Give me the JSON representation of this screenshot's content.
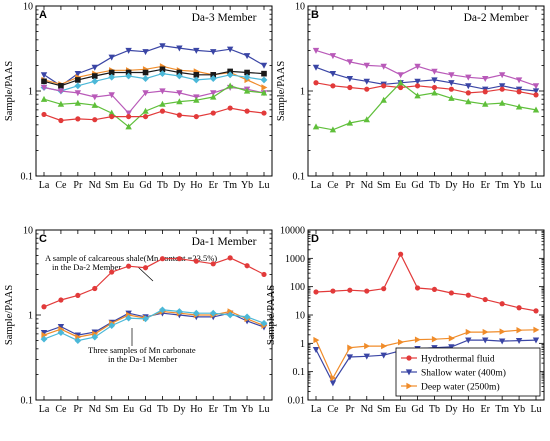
{
  "figure": {
    "elements": [
      "La",
      "Ce",
      "Pr",
      "Nd",
      "Sm",
      "Eu",
      "Gd",
      "Tb",
      "Dy",
      "Ho",
      "Er",
      "Tm",
      "Yb",
      "Lu"
    ],
    "ylabel": "Sample/PAAS"
  },
  "chart_data": [
    {
      "id": "A",
      "letter": "A",
      "type": "line",
      "title": "Da-3 Member",
      "ylabel": "Sample/PAAS",
      "yscale": "log",
      "ylim": [
        0.1,
        10
      ],
      "yticks": [
        "0.1",
        "1",
        "10"
      ],
      "categories": [
        "La",
        "Ce",
        "Pr",
        "Nd",
        "Sm",
        "Eu",
        "Gd",
        "Tb",
        "Dy",
        "Ho",
        "Er",
        "Tm",
        "Yb",
        "Lu"
      ],
      "series": [
        {
          "color": "#3a45a5",
          "marker": "triangle-down",
          "values": [
            1.55,
            1.15,
            1.6,
            1.9,
            2.5,
            3.0,
            2.9,
            3.4,
            3.2,
            3.0,
            2.9,
            3.1,
            2.6,
            2.0
          ]
        },
        {
          "color": "#f08c2a",
          "marker": "triangle-right",
          "values": [
            1.35,
            1.2,
            1.45,
            1.6,
            1.75,
            1.75,
            1.8,
            1.95,
            1.75,
            1.7,
            1.55,
            1.65,
            1.35,
            1.1
          ]
        },
        {
          "color": "#1a1a1a",
          "marker": "square",
          "values": [
            1.3,
            1.15,
            1.35,
            1.5,
            1.65,
            1.65,
            1.65,
            1.8,
            1.65,
            1.55,
            1.55,
            1.7,
            1.65,
            1.6
          ]
        },
        {
          "color": "#4bb8d8",
          "marker": "diamond",
          "values": [
            1.1,
            1.0,
            1.15,
            1.3,
            1.45,
            1.5,
            1.4,
            1.6,
            1.5,
            1.35,
            1.4,
            1.55,
            1.45,
            1.35
          ]
        },
        {
          "color": "#b95ab9",
          "marker": "triangle-down",
          "values": [
            1.1,
            1.0,
            0.95,
            0.85,
            0.9,
            0.55,
            0.95,
            1.0,
            0.95,
            0.85,
            0.95,
            1.1,
            1.05,
            0.95
          ]
        },
        {
          "color": "#5fbf3a",
          "marker": "triangle-up",
          "values": [
            0.8,
            0.7,
            0.72,
            0.68,
            0.55,
            0.38,
            0.58,
            0.7,
            0.75,
            0.78,
            0.85,
            1.15,
            1.0,
            0.95
          ]
        },
        {
          "color": "#e23a3a",
          "marker": "circle",
          "values": [
            0.53,
            0.45,
            0.47,
            0.46,
            0.5,
            0.5,
            0.5,
            0.58,
            0.52,
            0.5,
            0.55,
            0.63,
            0.58,
            0.55
          ]
        }
      ]
    },
    {
      "id": "B",
      "letter": "B",
      "type": "line",
      "title": "Da-2 Member",
      "ylabel": "Sample/PAAS",
      "yscale": "log",
      "ylim": [
        0.1,
        10
      ],
      "yticks": [
        "0.1",
        "1",
        "10"
      ],
      "categories": [
        "La",
        "Ce",
        "Pr",
        "Nd",
        "Sm",
        "Eu",
        "Gd",
        "Tb",
        "Dy",
        "Ho",
        "Er",
        "Tm",
        "Yb",
        "Lu"
      ],
      "series": [
        {
          "color": "#b95ab9",
          "marker": "triangle-down",
          "values": [
            3.0,
            2.6,
            2.2,
            2.0,
            1.95,
            1.55,
            1.95,
            1.7,
            1.55,
            1.45,
            1.4,
            1.55,
            1.35,
            1.15
          ]
        },
        {
          "color": "#3a45a5",
          "marker": "triangle-down",
          "values": [
            1.9,
            1.6,
            1.4,
            1.3,
            1.2,
            1.25,
            1.3,
            1.35,
            1.25,
            1.15,
            1.05,
            1.15,
            1.05,
            1.0
          ]
        },
        {
          "color": "#e23a3a",
          "marker": "circle",
          "values": [
            1.25,
            1.15,
            1.1,
            1.05,
            1.15,
            1.1,
            1.15,
            1.1,
            1.05,
            0.95,
            0.98,
            1.05,
            0.98,
            0.9
          ]
        },
        {
          "color": "#5fbf3a",
          "marker": "triangle-up",
          "values": [
            0.38,
            0.35,
            0.42,
            0.46,
            0.78,
            1.25,
            0.88,
            0.95,
            0.82,
            0.75,
            0.7,
            0.72,
            0.65,
            0.6
          ]
        }
      ]
    },
    {
      "id": "C",
      "letter": "C",
      "type": "line",
      "title": "Da-1 Member",
      "ylabel": "Sample/PAAS",
      "yscale": "log",
      "ylim": [
        0.1,
        10
      ],
      "yticks": [
        "0.1",
        "1",
        "10"
      ],
      "categories": [
        "La",
        "Ce",
        "Pr",
        "Nd",
        "Sm",
        "Eu",
        "Gd",
        "Tb",
        "Dy",
        "Ho",
        "Er",
        "Tm",
        "Yb",
        "Lu"
      ],
      "annotations": [
        {
          "line1": "A sample of calcareous shale(Mn content =23.5%)",
          "line2": "in the Da-2 Member"
        },
        {
          "line1": "Three samples of Mn carbonate",
          "line2": "in the Da-1 Member"
        }
      ],
      "series": [
        {
          "color": "#e23a3a",
          "marker": "circle",
          "values": [
            1.25,
            1.5,
            1.7,
            2.05,
            3.2,
            3.75,
            3.6,
            4.6,
            4.6,
            4.3,
            4.0,
            4.7,
            3.8,
            3.0
          ]
        },
        {
          "color": "#3a45a5",
          "marker": "triangle-down",
          "values": [
            0.62,
            0.73,
            0.58,
            0.63,
            0.82,
            1.05,
            0.95,
            1.05,
            1.0,
            0.95,
            0.95,
            1.05,
            0.85,
            0.72
          ]
        },
        {
          "color": "#f08c2a",
          "marker": "triangle-right",
          "values": [
            0.58,
            0.68,
            0.55,
            0.6,
            0.8,
            1.0,
            0.92,
            1.1,
            1.05,
            1.0,
            1.0,
            1.1,
            0.9,
            0.75
          ]
        },
        {
          "color": "#4bb8d8",
          "marker": "diamond",
          "values": [
            0.52,
            0.62,
            0.5,
            0.55,
            0.75,
            0.92,
            0.9,
            1.15,
            1.1,
            1.05,
            1.05,
            1.0,
            0.95,
            0.8
          ]
        }
      ]
    },
    {
      "id": "D",
      "letter": "D",
      "type": "line",
      "title": "",
      "ylabel": "Sample/PAAS",
      "yscale": "log",
      "ylim": [
        0.01,
        10000
      ],
      "yticks": [
        "0.01",
        "0.1",
        "1",
        "10",
        "100",
        "1000",
        "10000"
      ],
      "categories": [
        "La",
        "Ce",
        "Pr",
        "Nd",
        "Sm",
        "Eu",
        "Gd",
        "Tb",
        "Dy",
        "Ho",
        "Er",
        "Tm",
        "Yb",
        "Lu"
      ],
      "legend": {
        "placement": "bottom-right"
      },
      "series": [
        {
          "name": "Hydrothermal fluid",
          "color": "#e23a3a",
          "marker": "circle",
          "values": [
            65,
            70,
            75,
            70,
            85,
            1400,
            90,
            80,
            60,
            50,
            35,
            25,
            18,
            14
          ]
        },
        {
          "name": "Shallow water (400m)",
          "color": "#3a45a5",
          "marker": "triangle-down",
          "values": [
            0.6,
            0.04,
            0.33,
            0.35,
            0.38,
            0.55,
            0.65,
            0.7,
            0.75,
            1.3,
            1.3,
            1.2,
            1.25,
            1.3
          ]
        },
        {
          "name": "Deep water (2500m)",
          "color": "#f08c2a",
          "marker": "triangle-right",
          "values": [
            1.3,
            0.06,
            0.7,
            0.8,
            0.8,
            1.1,
            1.35,
            1.4,
            1.5,
            2.5,
            2.5,
            2.6,
            2.9,
            3.0
          ]
        }
      ]
    }
  ]
}
